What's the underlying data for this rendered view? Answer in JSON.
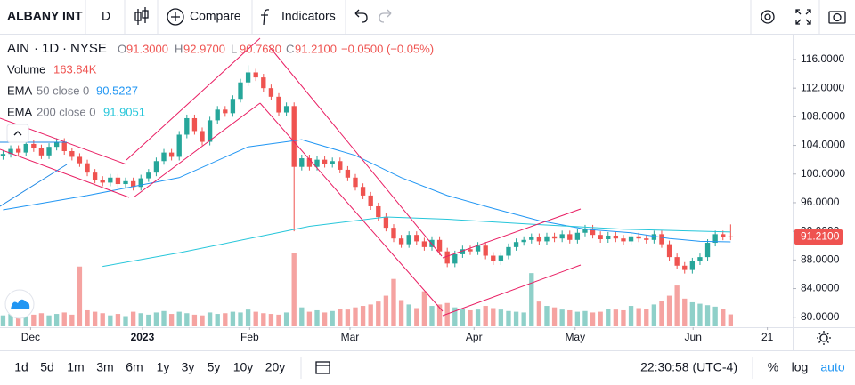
{
  "toolbar": {
    "symbol": "ALBANY INT",
    "interval": "D",
    "compare": "Compare",
    "indicators": "Indicators"
  },
  "legend": {
    "symbol": "AIN",
    "interval": "1D",
    "exchange": "NYSE",
    "ohlc": [
      {
        "key": "O",
        "text": "91.3000"
      },
      {
        "key": "H",
        "text": "92.9700"
      },
      {
        "key": "L",
        "text": "90.7680"
      },
      {
        "key": "C",
        "text": "91.2100"
      }
    ],
    "change": "−0.0500 (−0.05%)",
    "volume": {
      "name": "Volume",
      "value": "163.84K"
    }
  },
  "chart_data": {
    "type": "candlestick",
    "open": [
      102.5,
      102.8,
      103.5,
      103.0,
      104.2,
      103.6,
      102.6,
      103.8,
      104.5,
      103.2,
      102.4,
      101.5,
      100.2,
      99.2,
      98.8,
      99.5,
      98.6,
      99.0,
      98.2,
      99.4,
      100.2,
      101.8,
      103.0,
      102.4,
      105.5,
      107.8,
      106.0,
      104.5,
      107.5,
      109.0,
      108.5,
      110.5,
      112.8,
      114.2,
      113.5,
      112.0,
      110.8,
      108.6,
      109.5,
      101.0,
      102.2,
      101.0,
      102.0,
      101.4,
      101.8,
      100.6,
      99.5,
      98.2,
      97.0,
      95.5,
      94.0,
      92.5,
      91.0,
      90.2,
      91.5,
      90.6,
      89.8,
      90.8,
      89.2,
      87.5,
      88.8,
      89.5,
      89.2,
      90.0,
      88.6,
      87.8,
      88.6,
      89.8,
      90.5,
      90.8,
      91.2,
      90.6,
      91.3,
      91.0,
      91.6,
      90.8,
      91.8,
      92.4,
      91.5,
      90.9,
      91.4,
      91.0,
      90.6,
      91.3,
      91.0,
      90.8,
      91.6,
      90.2,
      88.4,
      87.2,
      86.6,
      87.8,
      88.4,
      90.4,
      91.6,
      91.3
    ],
    "high": [
      103.3,
      104.0,
      104.0,
      104.7,
      104.7,
      104.1,
      104.3,
      105.0,
      105.0,
      103.7,
      102.9,
      102.0,
      100.7,
      99.7,
      100.0,
      100.0,
      99.5,
      99.5,
      99.9,
      100.7,
      102.3,
      103.5,
      103.5,
      106.0,
      108.3,
      108.3,
      106.5,
      108.0,
      109.5,
      109.5,
      111.0,
      113.3,
      115.2,
      114.7,
      114.0,
      112.5,
      111.3,
      110.0,
      110.0,
      102.7,
      102.7,
      102.5,
      102.5,
      102.3,
      102.3,
      101.1,
      100.0,
      98.7,
      97.5,
      96.0,
      94.5,
      93.0,
      91.5,
      92.0,
      92.0,
      91.1,
      91.3,
      91.3,
      89.7,
      89.3,
      90.0,
      90.0,
      90.5,
      90.5,
      89.1,
      89.1,
      90.3,
      91.0,
      91.3,
      91.7,
      91.7,
      91.8,
      91.8,
      92.1,
      92.1,
      92.3,
      92.9,
      92.9,
      92.0,
      91.9,
      91.9,
      91.5,
      91.8,
      91.8,
      91.5,
      92.1,
      92.1,
      90.7,
      88.9,
      87.7,
      88.3,
      88.9,
      90.9,
      92.1,
      92.1,
      92.97
    ],
    "low": [
      102.0,
      102.3,
      102.5,
      102.5,
      103.1,
      102.1,
      102.1,
      103.3,
      102.7,
      101.9,
      101.0,
      99.7,
      98.7,
      98.3,
      98.3,
      98.1,
      98.1,
      97.7,
      97.7,
      98.9,
      99.7,
      101.3,
      101.9,
      101.9,
      105.0,
      105.5,
      104.0,
      104.0,
      107.0,
      108.0,
      108.0,
      110.0,
      112.3,
      113.0,
      111.5,
      110.3,
      108.1,
      108.1,
      92.0,
      100.5,
      100.5,
      100.5,
      100.9,
      100.9,
      100.1,
      99.0,
      97.7,
      96.5,
      95.0,
      93.5,
      92.0,
      90.5,
      89.7,
      89.7,
      90.1,
      89.3,
      89.3,
      88.7,
      87.0,
      87.0,
      88.3,
      88.7,
      88.7,
      88.1,
      87.3,
      87.3,
      88.1,
      89.3,
      90.0,
      90.3,
      90.1,
      90.1,
      90.5,
      90.5,
      90.3,
      90.3,
      91.3,
      91.0,
      90.4,
      90.4,
      90.5,
      90.1,
      90.1,
      90.5,
      90.3,
      90.3,
      89.7,
      87.9,
      86.7,
      86.1,
      86.1,
      87.3,
      87.9,
      89.9,
      90.76,
      90.768
    ],
    "close": [
      102.8,
      103.5,
      103.0,
      104.2,
      103.6,
      102.6,
      103.8,
      104.5,
      103.2,
      102.4,
      101.5,
      100.2,
      99.2,
      98.8,
      99.5,
      98.6,
      99.0,
      98.2,
      99.4,
      100.2,
      101.8,
      103.0,
      102.4,
      105.5,
      107.8,
      106.0,
      104.5,
      107.5,
      109.0,
      108.5,
      110.5,
      112.8,
      114.2,
      113.5,
      112.0,
      110.8,
      108.6,
      109.5,
      101.0,
      102.2,
      101.0,
      102.0,
      101.4,
      101.8,
      100.6,
      99.5,
      98.2,
      97.0,
      95.5,
      94.0,
      92.5,
      91.0,
      90.2,
      91.5,
      90.6,
      89.8,
      90.8,
      89.2,
      87.5,
      88.8,
      89.5,
      89.2,
      90.0,
      88.6,
      87.8,
      88.6,
      89.8,
      90.5,
      90.8,
      91.2,
      90.6,
      91.3,
      91.0,
      91.6,
      90.8,
      91.8,
      92.4,
      91.5,
      90.9,
      91.4,
      91.0,
      90.6,
      91.3,
      91.0,
      90.8,
      91.6,
      90.2,
      88.4,
      87.2,
      86.6,
      87.8,
      88.4,
      90.4,
      91.6,
      91.26,
      91.21
    ],
    "volume": [
      150000,
      170000,
      140000,
      200000,
      160000,
      180000,
      150000,
      170000,
      190000,
      160000,
      820000,
      220000,
      200000,
      180000,
      150000,
      170000,
      140000,
      200000,
      180000,
      160000,
      190000,
      210000,
      170000,
      200000,
      180000,
      160000,
      150000,
      190000,
      170000,
      180000,
      200000,
      190000,
      230000,
      200000,
      180000,
      170000,
      160000,
      190000,
      1000000,
      260000,
      200000,
      220000,
      190000,
      210000,
      240000,
      230000,
      260000,
      280000,
      300000,
      340000,
      420000,
      650000,
      360000,
      300000,
      250000,
      480000,
      280000,
      300000,
      320000,
      260000,
      240000,
      220000,
      230000,
      280000,
      250000,
      230000,
      210000,
      200000,
      190000,
      730000,
      340000,
      280000,
      260000,
      230000,
      220000,
      200000,
      210000,
      190000,
      200000,
      240000,
      230000,
      220000,
      280000,
      250000,
      240000,
      300000,
      350000,
      420000,
      560000,
      380000,
      330000,
      310000,
      290000,
      270000,
      240000,
      163840
    ],
    "colors": {
      "up": "#26a69a",
      "down": "#ef5350",
      "up_volume": "#8fd0c9",
      "down_volume": "#f5a3a1"
    },
    "series": [
      {
        "name": "EMA",
        "params": "50 close 0",
        "color": "#2196f3",
        "x": [
          0,
          11,
          23,
          32,
          39,
          46,
          52,
          58,
          64,
          70,
          76,
          82,
          87,
          91,
          95
        ],
        "values": [
          95.0,
          97.0,
          99.5,
          103.8,
          104.8,
          102.6,
          99.5,
          97.0,
          95.2,
          93.5,
          92.3,
          91.8,
          91.0,
          90.6,
          90.5227
        ]
      },
      {
        "name": "EMA",
        "params": "200 close 0",
        "color": "#26c6da",
        "x": [
          13,
          23,
          34,
          40,
          50,
          58,
          69,
          81,
          95
        ],
        "values": [
          87.1,
          89.0,
          91.4,
          92.7,
          94.0,
          93.7,
          93.0,
          92.3,
          91.9051
        ]
      }
    ],
    "last_price": {
      "value": 91.21,
      "label": "91.2100"
    },
    "xlim": [
      -0.4,
      103.1
    ],
    "xticks": [
      {
        "value": 3.6,
        "label": "Dec"
      },
      {
        "value": 18.2,
        "label": "2023"
      },
      {
        "value": 32.2,
        "label": "Feb"
      },
      {
        "value": 45.3,
        "label": "Mar"
      },
      {
        "value": 61.5,
        "label": "Apr"
      },
      {
        "value": 74.7,
        "label": "May"
      },
      {
        "value": 90.1,
        "label": "Jun"
      },
      {
        "value": 99.8,
        "label": "21"
      }
    ],
    "ylim": [
      78.6,
      119.6
    ],
    "yticks": [
      {
        "value": 80,
        "label": "80.0000"
      },
      {
        "value": 84,
        "label": "84.0000"
      },
      {
        "value": 88,
        "label": "88.0000"
      },
      {
        "value": 92,
        "label": "92.0000"
      },
      {
        "value": 96,
        "label": "96.0000"
      },
      {
        "value": 100,
        "label": "100.0000"
      },
      {
        "value": 104,
        "label": "104.0000"
      },
      {
        "value": 108,
        "label": "108.0000"
      },
      {
        "value": 112,
        "label": "112.0000"
      },
      {
        "value": 116,
        "label": "116.0000"
      }
    ],
    "grid": false
  },
  "bottom_bar": {
    "ranges": [
      "1d",
      "5d",
      "1m",
      "3m",
      "6m",
      "1y",
      "3y",
      "5y",
      "10y",
      "20y"
    ],
    "time": "22:30:58 (UTC-4)",
    "percent": "%",
    "log": "log",
    "auto": "auto"
  }
}
